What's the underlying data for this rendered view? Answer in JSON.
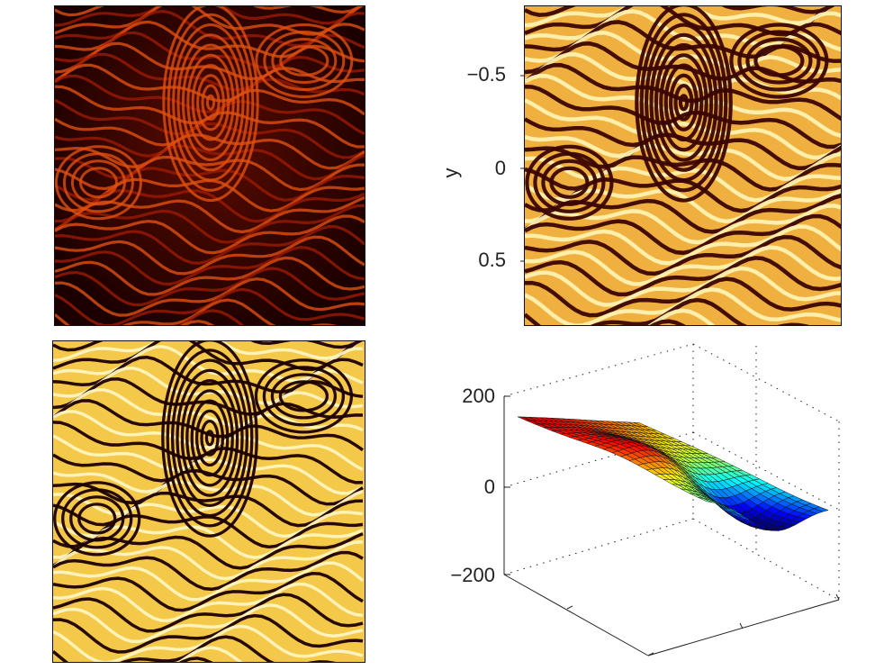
{
  "chart_data": [
    {
      "type": "heatmap",
      "title": "",
      "description_colormap": "hot",
      "xlabel": "",
      "ylabel": "",
      "tick_labels_x": [],
      "tick_labels_y": []
    },
    {
      "type": "heatmap",
      "title": "",
      "description_colormap": "hot",
      "xlabel": "",
      "ylabel": "y",
      "y_ticks": [
        -0.5,
        0,
        0.5
      ],
      "y_tick_labels": [
        "−0.5",
        "0",
        "0.5"
      ],
      "ylim": [
        -0.85,
        0.85
      ]
    },
    {
      "type": "heatmap",
      "title": "",
      "description_colormap": "hot",
      "xlabel": "",
      "ylabel": ""
    },
    {
      "type": "surface",
      "title": "",
      "colormap": "jet",
      "z_ticks": [
        200,
        0,
        -200
      ],
      "z_tick_labels": [
        "200",
        "0",
        "−200"
      ],
      "zlim": [
        -200,
        200
      ],
      "grid": true
    }
  ],
  "colors": {
    "hot_dark": "#1a0000",
    "hot_red": "#b0200a",
    "hot_orange": "#e8801c",
    "hot_yellow": "#fff3a0",
    "axis": "#222222"
  }
}
